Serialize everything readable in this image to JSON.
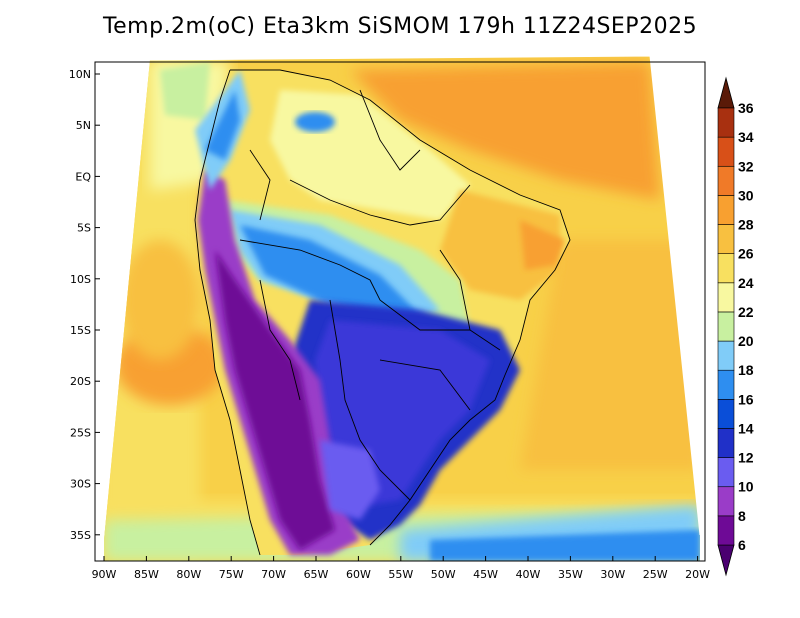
{
  "title": "Temp.2m(oC) Eta3km SiSMOM 179h 11Z24SEP2025",
  "lat_ticks": [
    "10N",
    "5N",
    "EQ",
    "5S",
    "10S",
    "15S",
    "20S",
    "25S",
    "30S",
    "35S"
  ],
  "lon_ticks": [
    "90W",
    "85W",
    "80W",
    "75W",
    "70W",
    "65W",
    "60W",
    "55W",
    "50W",
    "45W",
    "40W",
    "35W",
    "30W",
    "25W",
    "20W"
  ],
  "colorbar": {
    "min": 6,
    "max": 36,
    "labels": [
      "6",
      "8",
      "10",
      "12",
      "14",
      "16",
      "18",
      "20",
      "22",
      "24",
      "26",
      "28",
      "30",
      "32",
      "34",
      "36"
    ],
    "colors": [
      "#6e0a96",
      "#9a3cc8",
      "#6a5cf0",
      "#2030c8",
      "#0a4ed8",
      "#2e8ef0",
      "#80ccf8",
      "#c8f0a0",
      "#f8f8a0",
      "#f8e060",
      "#f8c040",
      "#f8a030",
      "#f07a28",
      "#d85018",
      "#a83010"
    ]
  }
}
